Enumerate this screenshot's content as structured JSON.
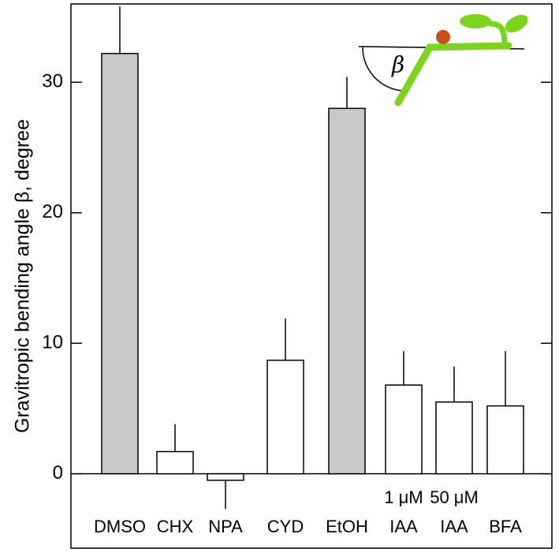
{
  "chart_data": {
    "type": "bar",
    "y_label": "Gravitropic bending angle β, degree",
    "categories": [
      "DMSO",
      "CHX",
      "NPA",
      "CYD",
      "EtOH",
      "IAA",
      "IAA",
      "BFA"
    ],
    "values": [
      32.2,
      1.7,
      -0.5,
      8.7,
      28.0,
      6.8,
      5.5,
      5.2
    ],
    "errors": [
      3.6,
      2.1,
      2.2,
      3.2,
      2.4,
      2.6,
      2.7,
      4.2
    ],
    "colors": [
      "#c8c8c8",
      "#ffffff",
      "#ffffff",
      "#ffffff",
      "#c8c8c8",
      "#ffffff",
      "#ffffff",
      "#ffffff"
    ],
    "annotations": [
      {
        "text": "1 μM",
        "category": 5
      },
      {
        "text": "50 μM",
        "category": 6
      }
    ],
    "inset_label": "β",
    "ylim": [
      -5.7,
      36
    ],
    "yticks": [
      0,
      10,
      20,
      30
    ]
  }
}
